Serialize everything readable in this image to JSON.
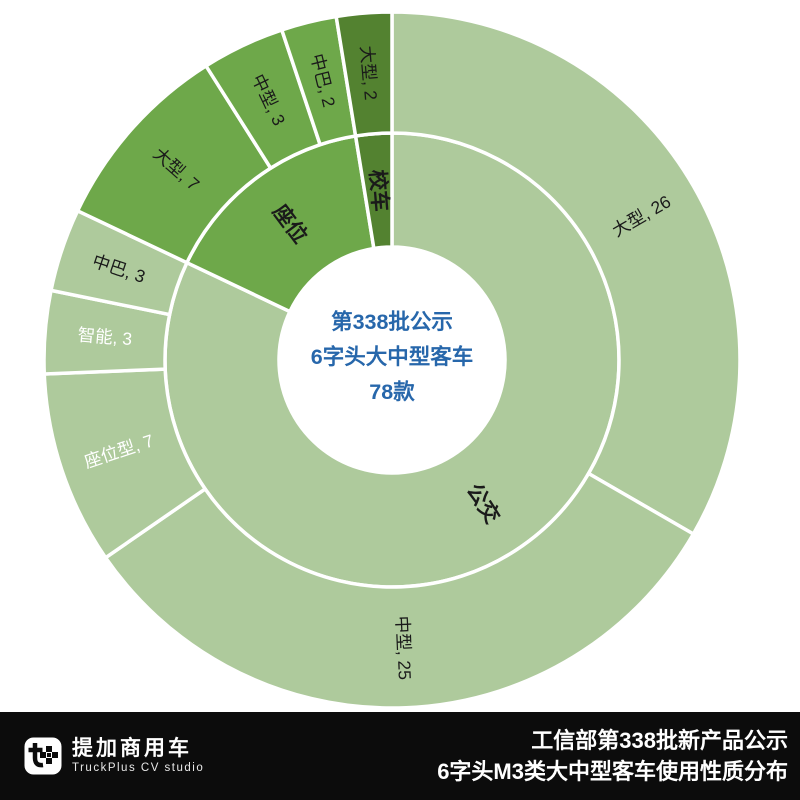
{
  "chart_data": {
    "type": "sunburst",
    "total": 78,
    "center_lines": [
      "第338批公示",
      "6字头大中型客车",
      "78款"
    ],
    "center_text_color": "#2767AB",
    "default_label_color": "#1a1a1a",
    "categories": [
      {
        "name": "公交",
        "value": 64,
        "color": "#AECA9C",
        "label_color": "#1a1a1a"
      },
      {
        "name": "座位",
        "value": 12,
        "color": "#6EA84A",
        "label_color": "#1a1a1a"
      },
      {
        "name": "校车",
        "value": 2,
        "color": "#538230",
        "label_color": "#1a1a1a"
      }
    ],
    "segments": [
      {
        "category": "公交",
        "label": "大型, 26",
        "value": 26,
        "text_color": "#1a1a1a"
      },
      {
        "category": "公交",
        "label": "中型, 25",
        "value": 25,
        "text_color": "#1a1a1a"
      },
      {
        "category": "公交",
        "label": "座位型, 7",
        "value": 7,
        "text_color": "#ffffff"
      },
      {
        "category": "公交",
        "label": "智能, 3",
        "value": 3,
        "text_color": "#ffffff"
      },
      {
        "category": "公交",
        "label": "中巴, 3",
        "value": 3,
        "text_color": "#1a1a1a"
      },
      {
        "category": "座位",
        "label": "大型, 7",
        "value": 7,
        "text_color": "#1a1a1a"
      },
      {
        "category": "座位",
        "label": "中型, 3",
        "value": 3,
        "text_color": "#1a1a1a"
      },
      {
        "category": "座位",
        "label": "中巴, 2",
        "value": 2,
        "text_color": "#1a1a1a"
      },
      {
        "category": "校车",
        "label": "大型, 2",
        "value": 2,
        "text_color": "#1a1a1a"
      }
    ],
    "legend_position": "none",
    "grid": false
  },
  "footer": {
    "line1": "工信部第338批新产品公示",
    "line2": "6字头M3类大中型客车使用性质分布",
    "logo_cn": "提加商用车",
    "logo_en": "TruckPlus CV studio"
  }
}
